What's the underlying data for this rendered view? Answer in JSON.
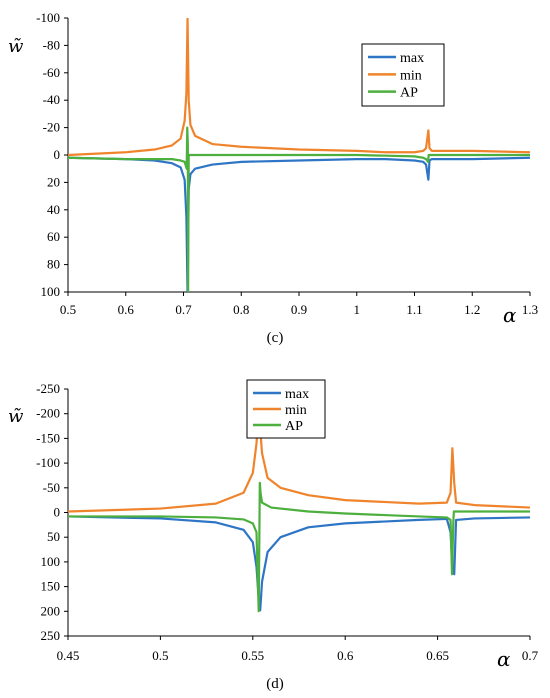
{
  "chart_data": [
    {
      "type": "line",
      "caption": "(c)",
      "xlabel": "α",
      "ylabel": "w̃",
      "xlim": [
        0.5,
        1.3
      ],
      "xticks": [
        0.5,
        0.6,
        0.7,
        0.8,
        0.9,
        1,
        1.1,
        1.2,
        1.3
      ],
      "ylim": [
        -100,
        100
      ],
      "yticks": [
        -100,
        -80,
        -60,
        -40,
        -20,
        0,
        20,
        40,
        60,
        80,
        100
      ],
      "y_inverted": true,
      "grid": false,
      "legend": "top-right",
      "series": [
        {
          "name": "max",
          "color": "#2E75C6",
          "x": [
            0.5,
            0.6,
            0.65,
            0.68,
            0.695,
            0.702,
            0.705,
            0.707,
            0.709,
            0.712,
            0.72,
            0.75,
            0.8,
            0.9,
            1.0,
            1.05,
            1.1,
            1.115,
            1.12,
            1.124,
            1.126,
            1.13,
            1.14,
            1.2,
            1.3
          ],
          "y": [
            2,
            3,
            4,
            6,
            9,
            18,
            45,
            100,
            25,
            14,
            10,
            7,
            5,
            4,
            3,
            3,
            4,
            5,
            7,
            18,
            4,
            3,
            3,
            3,
            2
          ]
        },
        {
          "name": "min",
          "color": "#F0842C",
          "x": [
            0.5,
            0.6,
            0.65,
            0.68,
            0.695,
            0.702,
            0.705,
            0.707,
            0.709,
            0.712,
            0.72,
            0.75,
            0.8,
            0.9,
            1.0,
            1.05,
            1.1,
            1.115,
            1.12,
            1.124,
            1.126,
            1.13,
            1.14,
            1.2,
            1.3
          ],
          "y": [
            0,
            -2,
            -4,
            -7,
            -12,
            -25,
            -45,
            -100,
            -40,
            -22,
            -14,
            -8,
            -6,
            -4,
            -3,
            -2,
            -2,
            -3,
            -5,
            -18,
            -5,
            -3,
            -3,
            -3,
            -2
          ]
        },
        {
          "name": "AP",
          "color": "#4CAF3E",
          "x": [
            0.5,
            0.6,
            0.65,
            0.68,
            0.695,
            0.702,
            0.7055,
            0.7065,
            0.7075,
            0.708,
            0.709,
            0.715,
            0.75,
            0.8,
            1.0,
            1.1,
            1.115,
            1.12,
            1.1235,
            1.1245,
            1.13,
            1.2,
            1.3
          ],
          "y": [
            2,
            3,
            3,
            3,
            4,
            5,
            10,
            -20,
            -8,
            100,
            0,
            0,
            0,
            0,
            0,
            1,
            2,
            3,
            5,
            0,
            0,
            0,
            0
          ]
        }
      ]
    },
    {
      "type": "line",
      "caption": "(d)",
      "xlabel": "α",
      "ylabel": "w̃",
      "xlim": [
        0.45,
        0.7
      ],
      "xticks": [
        0.45,
        0.5,
        0.55,
        0.6,
        0.65,
        0.7
      ],
      "ylim": [
        -250,
        250
      ],
      "yticks": [
        -250,
        -200,
        -150,
        -100,
        -50,
        0,
        50,
        100,
        150,
        200,
        250
      ],
      "y_inverted": true,
      "grid": false,
      "legend": "top-center",
      "series": [
        {
          "name": "max",
          "color": "#2E75C6",
          "x": [
            0.45,
            0.5,
            0.53,
            0.545,
            0.55,
            0.552,
            0.553,
            0.554,
            0.555,
            0.558,
            0.565,
            0.58,
            0.6,
            0.64,
            0.655,
            0.657,
            0.658,
            0.659,
            0.66,
            0.67,
            0.7
          ],
          "y": [
            8,
            12,
            20,
            35,
            60,
            110,
            165,
            198,
            140,
            80,
            50,
            30,
            22,
            15,
            13,
            40,
            110,
            125,
            15,
            12,
            10
          ]
        },
        {
          "name": "min",
          "color": "#F0842C",
          "x": [
            0.45,
            0.5,
            0.53,
            0.545,
            0.55,
            0.552,
            0.553,
            0.554,
            0.555,
            0.558,
            0.565,
            0.58,
            0.6,
            0.64,
            0.655,
            0.657,
            0.658,
            0.659,
            0.66,
            0.67,
            0.7
          ],
          "y": [
            -2,
            -8,
            -18,
            -40,
            -80,
            -140,
            -200,
            -170,
            -120,
            -70,
            -50,
            -35,
            -25,
            -18,
            -20,
            -40,
            -130,
            -60,
            -20,
            -15,
            -10
          ]
        },
        {
          "name": "AP",
          "color": "#4CAF3E",
          "x": [
            0.45,
            0.5,
            0.53,
            0.545,
            0.55,
            0.552,
            0.5532,
            0.5538,
            0.5542,
            0.555,
            0.56,
            0.58,
            0.6,
            0.64,
            0.655,
            0.657,
            0.6578,
            0.6585,
            0.6588,
            0.66,
            0.7
          ],
          "y": [
            8,
            8,
            10,
            14,
            22,
            40,
            200,
            -60,
            -40,
            -20,
            -10,
            -2,
            2,
            8,
            10,
            15,
            125,
            20,
            -2,
            -2,
            -2
          ]
        }
      ]
    }
  ]
}
